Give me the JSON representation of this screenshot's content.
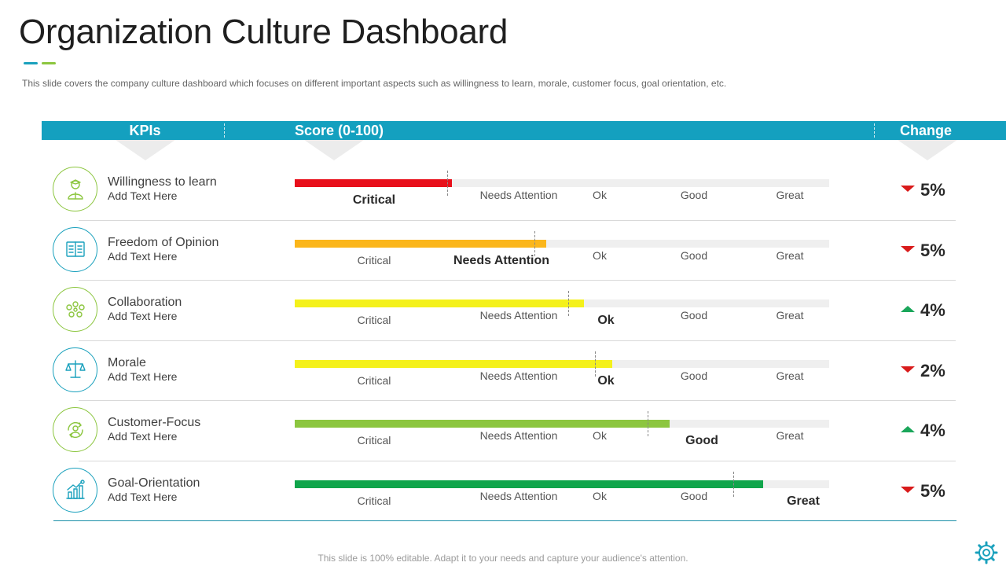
{
  "title": "Organization Culture Dashboard",
  "subtitle": "This slide covers the company culture dashboard which focuses on different  important aspects such as willingness to learn, morale, customer focus, goal orientation, etc.",
  "header": {
    "kpis": "KPIs",
    "score": "Score (0-100)",
    "change": "Change"
  },
  "levels": [
    "Critical",
    "Needs Attention",
    "Ok",
    "Good",
    "Great"
  ],
  "colors": {
    "header": "#14a0bf",
    "down": "#d91b1b",
    "up": "#1aa65a",
    "icon_green": "#8cc63f",
    "icon_blue": "#1aa1bd"
  },
  "rows": [
    {
      "name": "Willingness to learn",
      "sub": "Add Text Here",
      "icon": "learner-icon",
      "icon_color": "#8cc63f",
      "score_fraction": 0.294,
      "bar_color": "#e8101b",
      "status": "Critical",
      "change": "5%",
      "direction": "down"
    },
    {
      "name": "Freedom of Opinion",
      "sub": "Add Text Here",
      "icon": "book-icon",
      "icon_color": "#1aa1bd",
      "score_fraction": 0.471,
      "bar_color": "#fbb61b",
      "status": "Needs Attention",
      "change": "5%",
      "direction": "down"
    },
    {
      "name": "Collaboration",
      "sub": "Add Text Here",
      "icon": "team-icon",
      "icon_color": "#8cc63f",
      "score_fraction": 0.541,
      "bar_color": "#f4f11b",
      "status": "Ok",
      "change": "4%",
      "direction": "up"
    },
    {
      "name": "Morale",
      "sub": "Add Text Here",
      "icon": "scales-icon",
      "icon_color": "#1aa1bd",
      "score_fraction": 0.594,
      "bar_color": "#f4f11b",
      "status": "Ok",
      "change": "2%",
      "direction": "down"
    },
    {
      "name": "Customer-Focus",
      "sub": "Add Text Here",
      "icon": "customer-cycle-icon",
      "icon_color": "#8cc63f",
      "score_fraction": 0.701,
      "bar_color": "#8cc63f",
      "status": "Good",
      "change": "4%",
      "direction": "up"
    },
    {
      "name": "Goal-Orientation",
      "sub": "Add Text Here",
      "icon": "growth-chart-icon",
      "icon_color": "#1aa1bd",
      "score_fraction": 0.876,
      "bar_color": "#10a54b",
      "status": "Great",
      "change": "5%",
      "direction": "down"
    }
  ],
  "footer": "This slide is 100% editable. Adapt it to your needs and capture your audience's attention."
}
